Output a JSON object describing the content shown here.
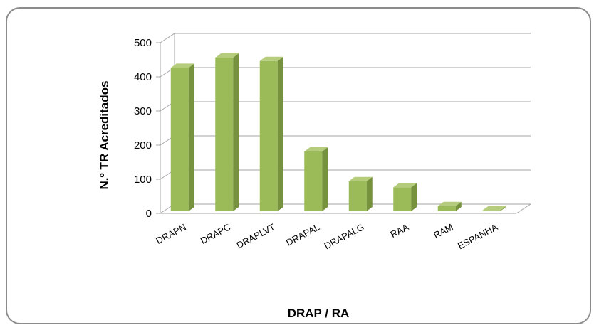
{
  "chart_data": {
    "type": "bar",
    "categories": [
      "DRAPN",
      "DRAPC",
      "DRAPLVT",
      "DRAPAL",
      "DRAPALG",
      "RAA",
      "RAM",
      "ESPANHA"
    ],
    "values": [
      420,
      450,
      440,
      175,
      88,
      70,
      15,
      1
    ],
    "xlabel": "DRAP / RA",
    "ylabel": "N.º TR Acreditados",
    "ylim": [
      0,
      500
    ],
    "yticks": [
      0,
      100,
      200,
      300,
      400,
      500
    ],
    "grid": true,
    "legend": "none",
    "colors": {
      "front": "#9bbb59",
      "side": "#76923c",
      "top": "#b4cc7c",
      "grid": "#a6a6a6"
    }
  }
}
